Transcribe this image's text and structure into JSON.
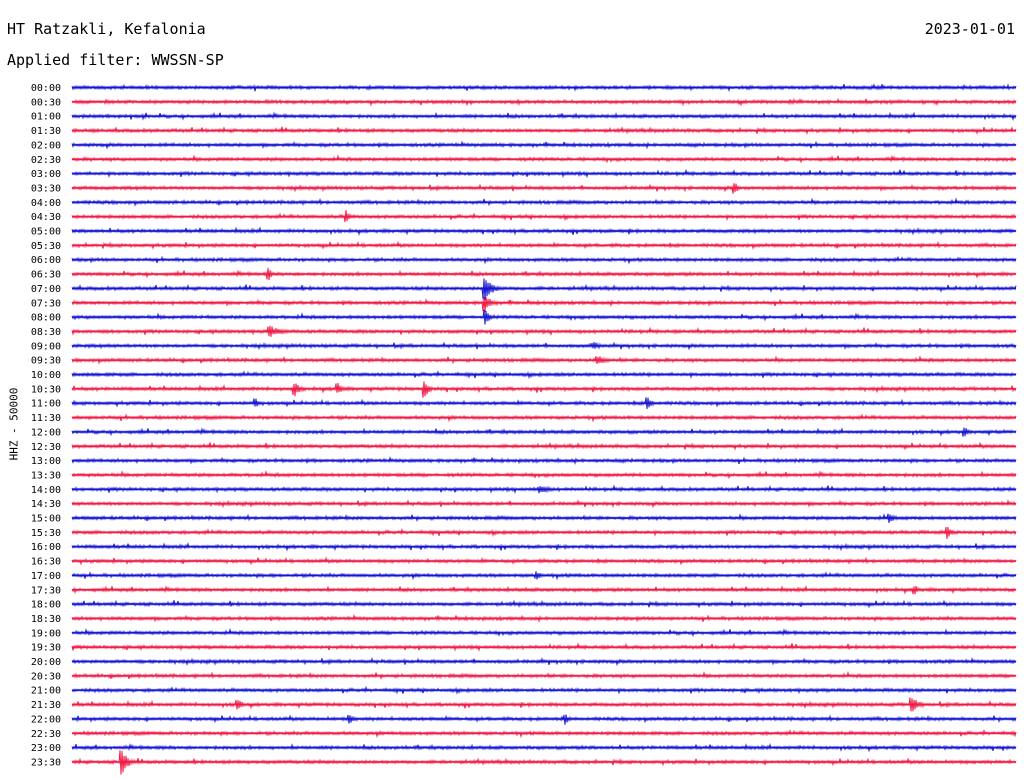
{
  "header": {
    "station": "HT Ratzakli, Kefalonia",
    "filter": "Applied filter: WWSSN-SP",
    "date": "2023-01-01"
  },
  "colors": {
    "trace_a": "#1414d2",
    "trace_b": "#ef1a46"
  },
  "chart_data": {
    "type": "line",
    "title": "HT Ratzakli, Kefalonia",
    "subtitle": "Applied filter: WWSSN-SP",
    "ylabel": "HHZ - 50000",
    "rows": [
      "00:00",
      "00:30",
      "01:00",
      "01:30",
      "02:00",
      "02:30",
      "03:00",
      "03:30",
      "04:00",
      "04:30",
      "05:00",
      "05:30",
      "06:00",
      "06:30",
      "07:00",
      "07:30",
      "08:00",
      "08:30",
      "09:00",
      "09:30",
      "10:00",
      "10:30",
      "11:00",
      "11:30",
      "12:00",
      "12:30",
      "13:00",
      "13:30",
      "14:00",
      "14:30",
      "15:00",
      "15:30",
      "16:00",
      "16:30",
      "17:00",
      "17:30",
      "18:00",
      "18:30",
      "19:00",
      "19:30",
      "20:00",
      "20:30",
      "21:00",
      "21:30",
      "22:00",
      "22:30",
      "23:00",
      "23:30"
    ],
    "alternate_colors": [
      "#1414d2",
      "#ef1a46"
    ]
  }
}
